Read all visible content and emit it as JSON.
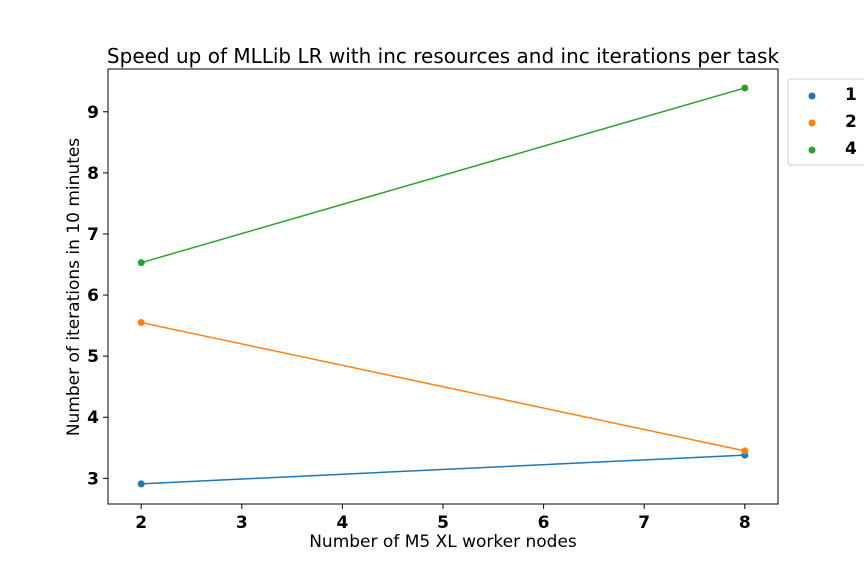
{
  "chart_data": {
    "type": "line",
    "title": "Speed up of MLLib LR with inc resources and inc iterations per task",
    "xlabel": "Number of M5 XL worker nodes",
    "ylabel": "Number of iterations in 10 minutes",
    "x": [
      2,
      8
    ],
    "xlim": [
      1.67,
      8.33
    ],
    "ylim": [
      2.58,
      9.7
    ],
    "xticks": [
      "2",
      "3",
      "4",
      "5",
      "6",
      "7",
      "8"
    ],
    "yticks": [
      "3",
      "4",
      "5",
      "6",
      "7",
      "8",
      "9"
    ],
    "grid": false,
    "legend_position": "outside-top-right",
    "series": [
      {
        "name": "1",
        "values": [
          2.91,
          3.38
        ],
        "color": "#1f77b4"
      },
      {
        "name": "2",
        "values": [
          5.55,
          3.45
        ],
        "color": "#ff7f0e"
      },
      {
        "name": "4",
        "values": [
          6.53,
          9.39
        ],
        "color": "#2ca02c"
      }
    ]
  }
}
